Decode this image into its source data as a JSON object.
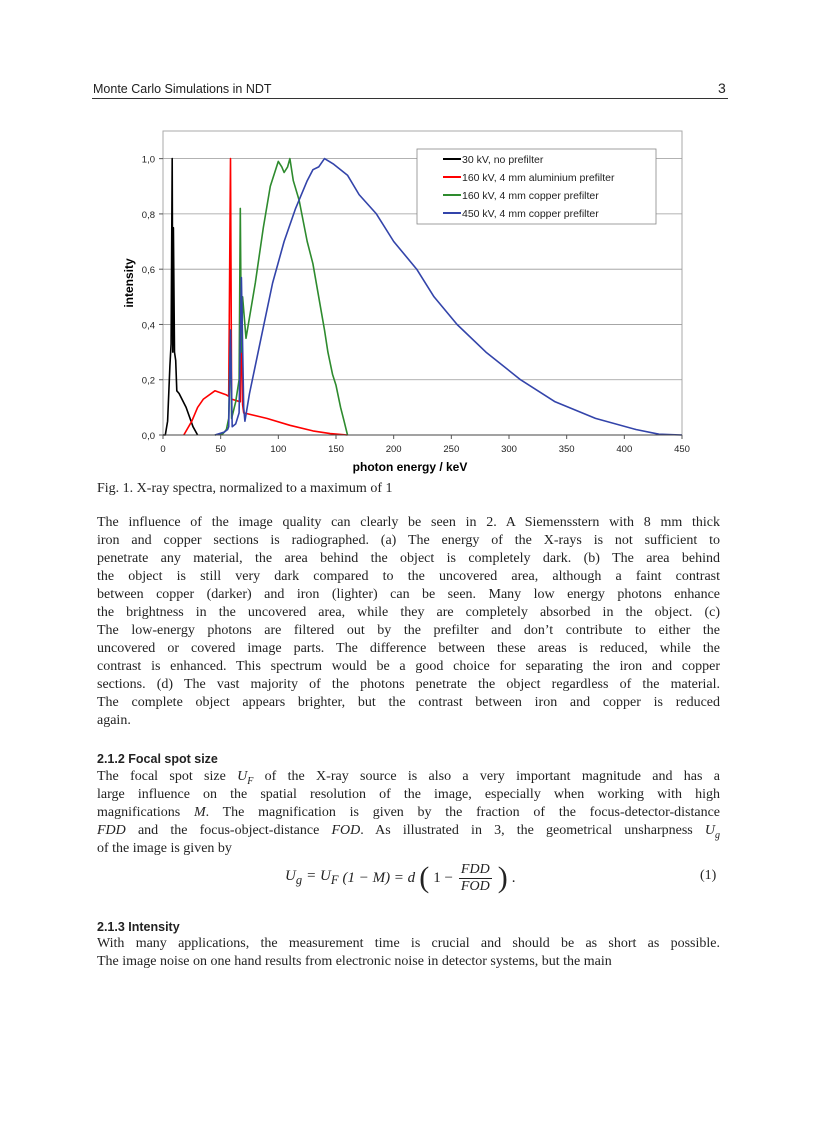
{
  "header": {
    "running_title": "Monte Carlo Simulations in NDT",
    "page_number": "3"
  },
  "figure": {
    "caption": "Fig. 1. X-ray spectra, normalized to a maximum of 1"
  },
  "chart_data": {
    "type": "line",
    "title": "",
    "xlabel": "photon energy / keV",
    "ylabel": "intensity",
    "xlim": [
      0,
      450
    ],
    "ylim": [
      0,
      1.1
    ],
    "x_ticks": [
      "0",
      "50",
      "100",
      "150",
      "200",
      "250",
      "300",
      "350",
      "400",
      "450"
    ],
    "y_ticks": [
      "0,0",
      "0,2",
      "0,4",
      "0,6",
      "0,8",
      "1,0"
    ],
    "grid": "horizontal",
    "legend_position": "top-right",
    "series": [
      {
        "name": "30 kV, no prefilter",
        "color": "#000000",
        "points": [
          [
            0,
            0
          ],
          [
            2,
            0
          ],
          [
            4,
            0.05
          ],
          [
            6,
            0.25
          ],
          [
            7,
            0.33
          ],
          [
            8,
            1.0
          ],
          [
            8.5,
            0.3
          ],
          [
            9,
            0.75
          ],
          [
            10,
            0.3
          ],
          [
            11,
            0.27
          ],
          [
            12,
            0.16
          ],
          [
            14,
            0.15
          ],
          [
            20,
            0.1
          ],
          [
            26,
            0.03
          ],
          [
            30,
            0
          ]
        ]
      },
      {
        "name": "160 kV, 4 mm aluminium prefilter",
        "color": "#ff0000",
        "points": [
          [
            18,
            0
          ],
          [
            25,
            0.05
          ],
          [
            30,
            0.1
          ],
          [
            35,
            0.13
          ],
          [
            45,
            0.16
          ],
          [
            55,
            0.145
          ],
          [
            57,
            0.14
          ],
          [
            58.5,
            1.0
          ],
          [
            59.5,
            0.13
          ],
          [
            67,
            0.12
          ],
          [
            68,
            0.45
          ],
          [
            69,
            0.11
          ],
          [
            70,
            0.08
          ],
          [
            90,
            0.06
          ],
          [
            110,
            0.035
          ],
          [
            130,
            0.015
          ],
          [
            145,
            0.005
          ],
          [
            160,
            0
          ]
        ]
      },
      {
        "name": "160 kV, 4 mm copper prefilter",
        "color": "#2e8b2e",
        "points": [
          [
            45,
            0
          ],
          [
            52,
            0.005
          ],
          [
            55,
            0.02
          ],
          [
            57,
            0.06
          ],
          [
            58.5,
            0.38
          ],
          [
            59.5,
            0.06
          ],
          [
            63,
            0.12
          ],
          [
            66,
            0.2
          ],
          [
            67,
            0.82
          ],
          [
            68,
            0.3
          ],
          [
            69,
            0.5
          ],
          [
            72,
            0.35
          ],
          [
            80,
            0.55
          ],
          [
            87,
            0.75
          ],
          [
            93,
            0.9
          ],
          [
            100,
            0.99
          ],
          [
            103,
            0.97
          ],
          [
            105,
            0.95
          ],
          [
            108,
            0.97
          ],
          [
            110,
            1.0
          ],
          [
            113,
            0.92
          ],
          [
            118,
            0.85
          ],
          [
            125,
            0.7
          ],
          [
            130,
            0.62
          ],
          [
            135,
            0.5
          ],
          [
            140,
            0.38
          ],
          [
            143,
            0.3
          ],
          [
            147,
            0.22
          ],
          [
            150,
            0.18
          ],
          [
            154,
            0.1
          ],
          [
            157,
            0.05
          ],
          [
            160,
            0
          ]
        ]
      },
      {
        "name": "450 kV, 4 mm copper prefilter",
        "color": "#3344aa",
        "points": [
          [
            45,
            0
          ],
          [
            53,
            0.01
          ],
          [
            56,
            0.02
          ],
          [
            57,
            0.03
          ],
          [
            58.5,
            0.38
          ],
          [
            60,
            0.03
          ],
          [
            63,
            0.04
          ],
          [
            66,
            0.08
          ],
          [
            68,
            0.57
          ],
          [
            70,
            0.1
          ],
          [
            71,
            0.05
          ],
          [
            75,
            0.15
          ],
          [
            85,
            0.35
          ],
          [
            95,
            0.55
          ],
          [
            105,
            0.7
          ],
          [
            115,
            0.82
          ],
          [
            125,
            0.92
          ],
          [
            130,
            0.96
          ],
          [
            135,
            0.97
          ],
          [
            140,
            1.0
          ],
          [
            148,
            0.98
          ],
          [
            160,
            0.94
          ],
          [
            170,
            0.87
          ],
          [
            185,
            0.8
          ],
          [
            200,
            0.7
          ],
          [
            220,
            0.6
          ],
          [
            235,
            0.5
          ],
          [
            255,
            0.4
          ],
          [
            280,
            0.3
          ],
          [
            310,
            0.2
          ],
          [
            340,
            0.12
          ],
          [
            375,
            0.06
          ],
          [
            410,
            0.02
          ],
          [
            430,
            0.003
          ],
          [
            450,
            0
          ]
        ]
      }
    ]
  },
  "body": {
    "paragraph1": [
      "The influence of the image quality can clearly be seen in 2. A Siemensstern with 8 mm thick",
      "iron and copper sections is radiographed. (a) The energy of the X-rays is not sufficient to",
      "penetrate any material, the area behind the object is completely dark. (b) The area behind",
      "the object is still very dark compared to the uncovered area, although a faint contrast",
      "between copper (darker) and iron (lighter) can be seen. Many low energy photons enhance",
      "the brightness in the uncovered area, while they are completely absorbed in the object. (c)",
      "The low-energy photons are filtered out by the prefilter and don’t contribute to either the",
      "uncovered or covered image parts. The difference between these areas is reduced, while the",
      "contrast is enhanced. This spectrum would be a good choice for separating the iron and copper",
      "sections. (d) The vast majority of the photons penetrate the object regardless of the material.",
      "The complete object appears brighter, but the contrast between iron and copper is reduced",
      "again."
    ],
    "section_212": "2.1.2 Focal spot size",
    "paragraph2": [
      "The focal spot size U_F of the X-ray source is also a very important magnitude and has a",
      "large influence on the spatial resolution of the image, especially when working with high",
      "magnifications M. The magnification is given by the fraction of the focus-detector-distance",
      "FDD and the focus-object-distance FOD. As illustrated in 3, the geometrical unsharpness U_g",
      "of the image is given by"
    ],
    "equation": {
      "lhs": "U",
      "lhs_sub": "g",
      "mid1": "= U",
      "mid1_sub": "F",
      "mid2": "(1 − M) = d",
      "one_minus": "1 −",
      "num": "FDD",
      "den": "FOD",
      "end": ".",
      "number": "(1)"
    },
    "section_213": "2.1.3 Intensity",
    "paragraph3": [
      "With many applications, the measurement time is crucial and should be as short as possible.",
      "The image noise on one hand results from electronic noise in detector systems, but the main"
    ]
  }
}
